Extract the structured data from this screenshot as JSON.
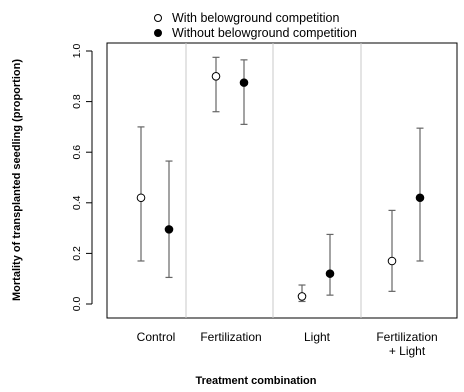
{
  "chart_data": {
    "type": "scatter",
    "title": "",
    "xlabel": "Treatment combination",
    "ylabel": "Mortality of transplanted seedling (proportion)",
    "ylim": [
      0,
      1.0
    ],
    "yticks": [
      "0.0",
      "0.2",
      "0.4",
      "0.6",
      "0.8",
      "1.0"
    ],
    "categories": [
      {
        "line1": "Control",
        "line2": ""
      },
      {
        "line1": "Fertilization",
        "line2": ""
      },
      {
        "line1": "Light",
        "line2": ""
      },
      {
        "line1": "Fertilization",
        "line2": "+ Light"
      }
    ],
    "legend_position": "top",
    "grid": false,
    "series": [
      {
        "name": "With belowground competition",
        "marker": "open-circle",
        "values": [
          0.42,
          0.9,
          0.03,
          0.17
        ],
        "lower": [
          0.17,
          0.76,
          0.01,
          0.05
        ],
        "upper": [
          0.7,
          0.975,
          0.075,
          0.37
        ]
      },
      {
        "name": "Without belowground competition",
        "marker": "filled-circle",
        "values": [
          0.295,
          0.875,
          0.12,
          0.42
        ],
        "lower": [
          0.105,
          0.71,
          0.035,
          0.17
        ],
        "upper": [
          0.565,
          0.965,
          0.275,
          0.695
        ]
      }
    ],
    "colors": {
      "marker": "#000000",
      "errorbar": "#666666",
      "separator": "#c8c8c8",
      "axis": "#000000"
    }
  }
}
